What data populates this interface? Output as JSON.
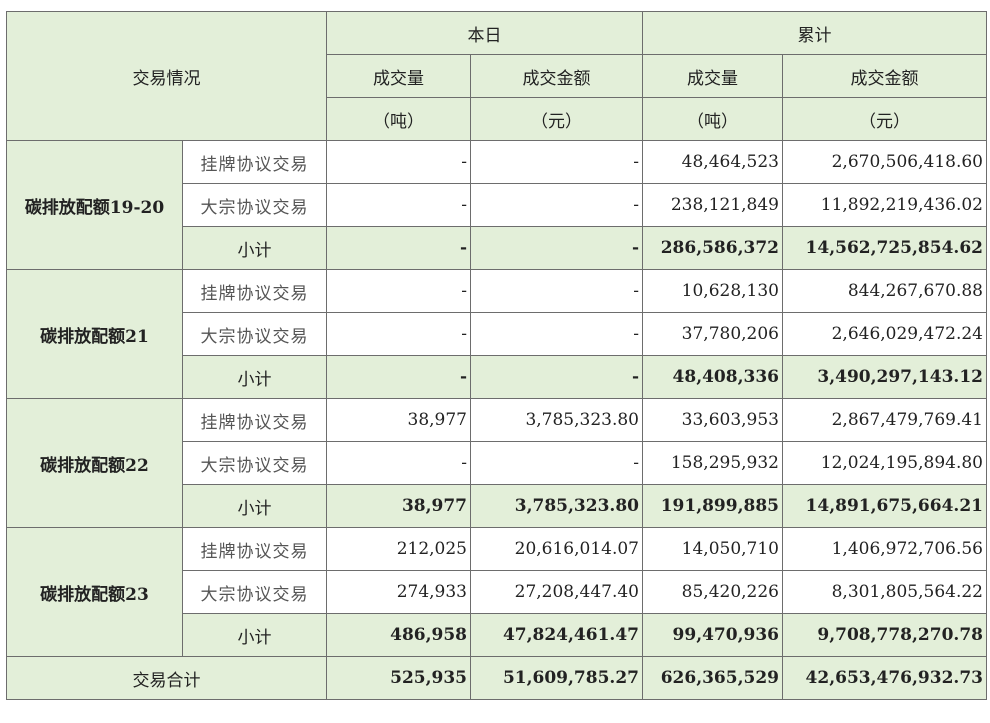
{
  "header": {
    "trade_situation": "交易情况",
    "today": "本日",
    "cumulative": "累计",
    "volume": "成交量",
    "volume_unit": "（吨）",
    "amount": "成交金额",
    "amount_unit": "（元）"
  },
  "labels": {
    "listing": "挂牌协议交易",
    "bulk": "大宗协议交易",
    "subtotal": "小计",
    "total": "交易合计"
  },
  "groups": [
    {
      "name": "碳排放配额19-20",
      "listing": {
        "today_vol": "-",
        "today_amt": "-",
        "cum_vol": "48,464,523",
        "cum_amt": "2,670,506,418.60"
      },
      "bulk": {
        "today_vol": "-",
        "today_amt": "-",
        "cum_vol": "238,121,849",
        "cum_amt": "11,892,219,436.02"
      },
      "subtotal": {
        "today_vol": "-",
        "today_amt": "-",
        "cum_vol": "286,586,372",
        "cum_amt": "14,562,725,854.62"
      }
    },
    {
      "name": "碳排放配额21",
      "listing": {
        "today_vol": "-",
        "today_amt": "-",
        "cum_vol": "10,628,130",
        "cum_amt": "844,267,670.88"
      },
      "bulk": {
        "today_vol": "-",
        "today_amt": "-",
        "cum_vol": "37,780,206",
        "cum_amt": "2,646,029,472.24"
      },
      "subtotal": {
        "today_vol": "-",
        "today_amt": "-",
        "cum_vol": "48,408,336",
        "cum_amt": "3,490,297,143.12"
      }
    },
    {
      "name": "碳排放配额22",
      "listing": {
        "today_vol": "38,977",
        "today_amt": "3,785,323.80",
        "cum_vol": "33,603,953",
        "cum_amt": "2,867,479,769.41"
      },
      "bulk": {
        "today_vol": "-",
        "today_amt": "-",
        "cum_vol": "158,295,932",
        "cum_amt": "12,024,195,894.80"
      },
      "subtotal": {
        "today_vol": "38,977",
        "today_amt": "3,785,323.80",
        "cum_vol": "191,899,885",
        "cum_amt": "14,891,675,664.21"
      }
    },
    {
      "name": "碳排放配额23",
      "listing": {
        "today_vol": "212,025",
        "today_amt": "20,616,014.07",
        "cum_vol": "14,050,710",
        "cum_amt": "1,406,972,706.56"
      },
      "bulk": {
        "today_vol": "274,933",
        "today_amt": "27,208,447.40",
        "cum_vol": "85,420,226",
        "cum_amt": "8,301,805,564.22"
      },
      "subtotal": {
        "today_vol": "486,958",
        "today_amt": "47,824,461.47",
        "cum_vol": "99,470,936",
        "cum_amt": "9,708,778,270.78"
      }
    }
  ],
  "total": {
    "today_vol": "525,935",
    "today_amt": "51,609,785.27",
    "cum_vol": "626,365,529",
    "cum_amt": "42,653,476,932.73"
  },
  "colors": {
    "header_bg": "#e3efd9",
    "border": "#6d6d6d"
  }
}
